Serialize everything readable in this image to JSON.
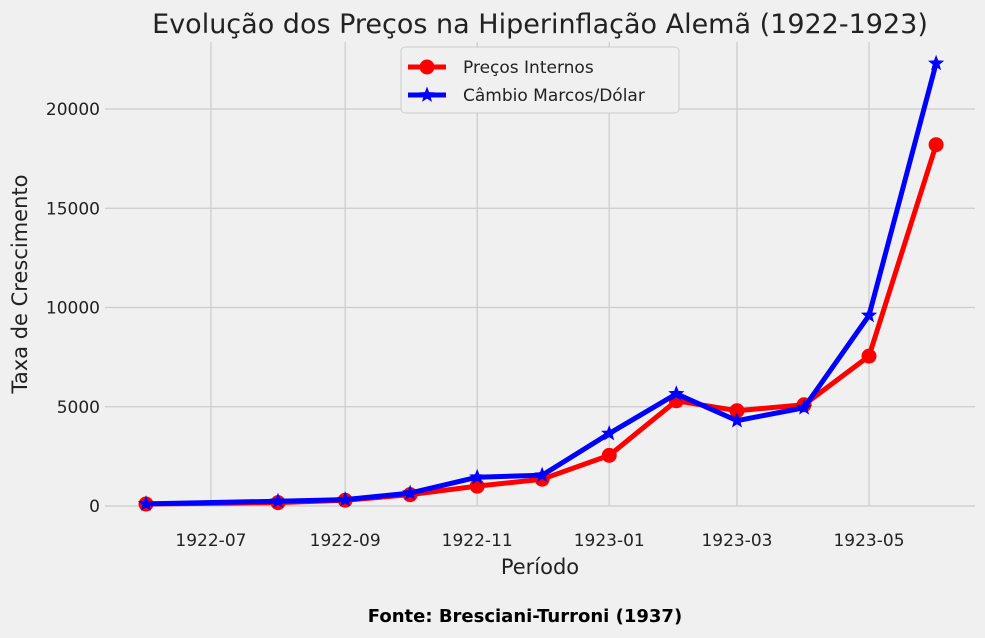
{
  "source": "Fonte: Bresciani-Turroni (1937)",
  "chart_data": {
    "type": "line",
    "title": "Evolução dos Preços na Hiperinflação Alemã (1922-1923)",
    "xlabel": "Período",
    "ylabel": "Taxa de Crescimento",
    "x": [
      "1922-06",
      "1922-08",
      "1922-09",
      "1922-10",
      "1922-11",
      "1922-12",
      "1923-01",
      "1923-02",
      "1923-03",
      "1923-04",
      "1923-05",
      "1923-06"
    ],
    "x_ticks": [
      "1922-07",
      "1922-09",
      "1922-11",
      "1923-01",
      "1923-03",
      "1923-05"
    ],
    "y_ticks": [
      0,
      5000,
      10000,
      15000,
      20000
    ],
    "ylim": [
      -1100,
      23400
    ],
    "grid": true,
    "legend_position": "top-center",
    "series": [
      {
        "name": "Preços Internos",
        "color": "#ff0000",
        "marker": "circle",
        "values": [
          100,
          170,
          290,
          570,
          1000,
          1350,
          2550,
          5300,
          4800,
          5100,
          7550,
          18200
        ]
      },
      {
        "name": "Câmbio Marcos/Dólar",
        "color": "#0000ff",
        "marker": "star",
        "values": [
          110,
          240,
          320,
          650,
          1450,
          1550,
          3650,
          5650,
          4300,
          4950,
          9600,
          22300
        ]
      }
    ]
  }
}
